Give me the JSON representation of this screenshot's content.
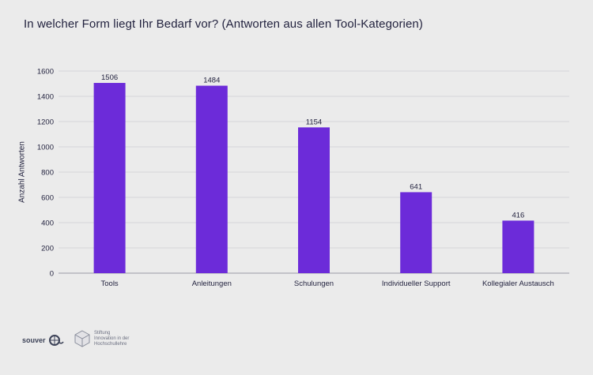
{
  "chart_data": {
    "type": "bar",
    "title": "In welcher Form liegt Ihr Bedarf vor? (Antworten aus allen Tool-Kategorien)",
    "xlabel": "",
    "ylabel": "Anzahl Antworten",
    "categories": [
      "Tools",
      "Anleitungen",
      "Schulungen",
      "Individueller Support",
      "Kollegialer Austausch"
    ],
    "values": [
      1506,
      1484,
      1154,
      641,
      416
    ],
    "value_labels": [
      "1506",
      "1484",
      "1154",
      "641",
      "416"
    ],
    "yticks": [
      0,
      200,
      400,
      600,
      800,
      1000,
      1200,
      1400,
      1600
    ],
    "ylim": [
      0,
      1600
    ],
    "grid": true,
    "bar_color": "#6c2bd9"
  },
  "footer": {
    "logo_souver_text": "souver",
    "logo_stiftung_lines": [
      "Stiftung",
      "Innovation in der",
      "Hochschullehre"
    ]
  }
}
